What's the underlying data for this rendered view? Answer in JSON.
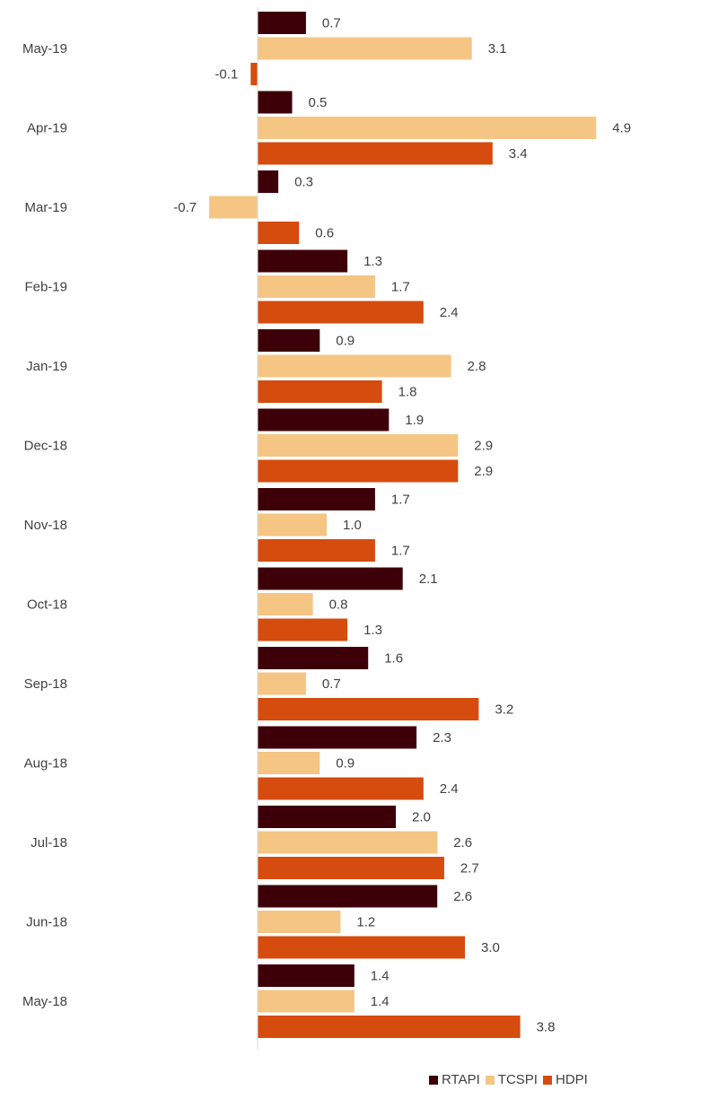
{
  "chart_data": {
    "type": "bar",
    "orientation": "horizontal",
    "categories": [
      "May-19",
      "Apr-19",
      "Mar-19",
      "Feb-19",
      "Jan-19",
      "Dec-18",
      "Nov-18",
      "Oct-18",
      "Sep-18",
      "Aug-18",
      "Jul-18",
      "Jun-18",
      "May-18"
    ],
    "series": [
      {
        "name": "RTAPI",
        "color": "#3d0009",
        "values": [
          0.7,
          0.5,
          0.3,
          1.3,
          0.9,
          1.9,
          1.7,
          2.1,
          1.6,
          2.3,
          2.0,
          2.6,
          1.4
        ]
      },
      {
        "name": "TCSPI",
        "color": "#f5c584",
        "values": [
          3.1,
          4.9,
          -0.7,
          1.7,
          2.8,
          2.9,
          1.0,
          0.8,
          0.7,
          0.9,
          2.6,
          1.2,
          1.4
        ]
      },
      {
        "name": "HDPI",
        "color": "#d64b0e",
        "values": [
          -0.1,
          3.4,
          0.6,
          2.4,
          1.8,
          2.9,
          1.7,
          1.3,
          3.2,
          2.4,
          2.7,
          3.0,
          3.8
        ]
      }
    ],
    "value_labels": {
      "RTAPI": [
        "0.7",
        "0.5",
        "0.3",
        "1.3",
        "0.9",
        "1.9",
        "1.7",
        "2.1",
        "1.6",
        "2.3",
        "2.0",
        "2.6",
        "1.4"
      ],
      "TCSPI": [
        "3.1",
        "4.9",
        "-0.7",
        "1.7",
        "2.8",
        "2.9",
        "1.0",
        "0.8",
        "0.7",
        "0.9",
        "2.6",
        "1.2",
        "1.4"
      ],
      "HDPI": [
        "-0.1",
        "3.4",
        "0.6",
        "2.4",
        "1.8",
        "2.9",
        "1.7",
        "1.3",
        "3.2",
        "2.4",
        "2.7",
        "3.0",
        "3.8"
      ]
    },
    "title": "",
    "xlabel": "",
    "ylabel": "",
    "xlim": [
      -0.7,
      4.9
    ],
    "grid": false,
    "legend_position": "bottom-right"
  }
}
